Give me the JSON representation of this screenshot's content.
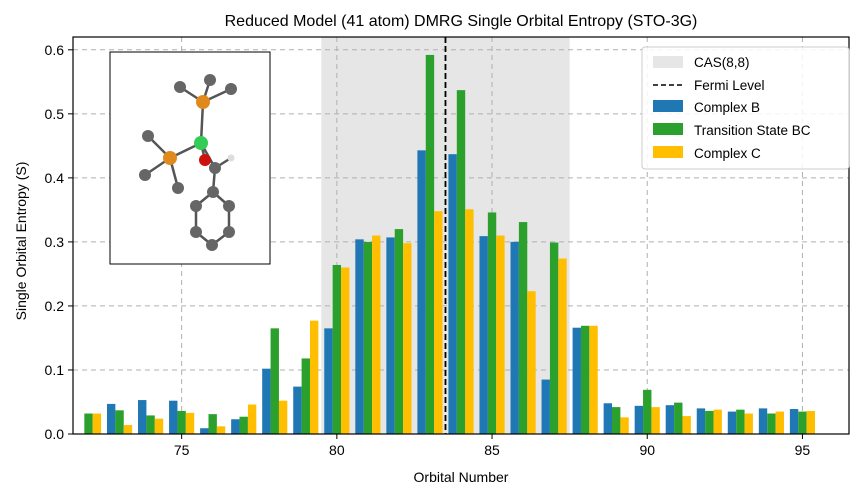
{
  "chart_data": {
    "type": "bar",
    "title": "Reduced Model (41 atom) DMRG Single Orbital Entropy (STO-3G)",
    "xlabel": "Orbital Number",
    "ylabel": "Single Orbital Entropy (S)",
    "xlim": [
      71.5,
      96.5
    ],
    "ylim": [
      0,
      0.62
    ],
    "xticks": [
      75,
      80,
      85,
      90,
      95
    ],
    "yticks": [
      0.0,
      0.1,
      0.2,
      0.3,
      0.4,
      0.5,
      0.6
    ],
    "grid": true,
    "legend_position": "top-right",
    "cas_region": {
      "label": "CAS(8,8)",
      "x_start": 79.5,
      "x_end": 87.5,
      "color": "#e6e6e6"
    },
    "fermi_level": {
      "label": "Fermi Level",
      "x": 83.5,
      "color": "#000000"
    },
    "x": [
      72,
      73,
      74,
      75,
      76,
      77,
      78,
      79,
      80,
      81,
      82,
      83,
      84,
      85,
      86,
      87,
      88,
      89,
      90,
      91,
      92,
      93,
      94,
      95
    ],
    "series": [
      {
        "name": "Complex B",
        "color": "#1f77b4",
        "values": [
          0.0,
          0.047,
          0.053,
          0.052,
          0.009,
          0.023,
          0.102,
          0.074,
          0.165,
          0.304,
          0.307,
          0.443,
          0.437,
          0.309,
          0.3,
          0.085,
          0.166,
          0.048,
          0.044,
          0.045,
          0.04,
          0.035,
          0.04,
          0.039
        ]
      },
      {
        "name": "Transition State BC",
        "color": "#2ca02c",
        "values": [
          0.032,
          0.037,
          0.029,
          0.036,
          0.031,
          0.027,
          0.165,
          0.118,
          0.264,
          0.3,
          0.32,
          0.592,
          0.537,
          0.346,
          0.331,
          0.299,
          0.169,
          0.042,
          0.069,
          0.049,
          0.036,
          0.038,
          0.032,
          0.035
        ]
      },
      {
        "name": "Complex C",
        "color": "#ffbf00",
        "values": [
          0.032,
          0.014,
          0.024,
          0.033,
          0.012,
          0.046,
          0.052,
          0.177,
          0.26,
          0.31,
          0.298,
          0.348,
          0.351,
          0.31,
          0.223,
          0.274,
          0.169,
          0.026,
          0.042,
          0.028,
          0.038,
          0.032,
          0.035,
          0.036
        ]
      }
    ]
  }
}
